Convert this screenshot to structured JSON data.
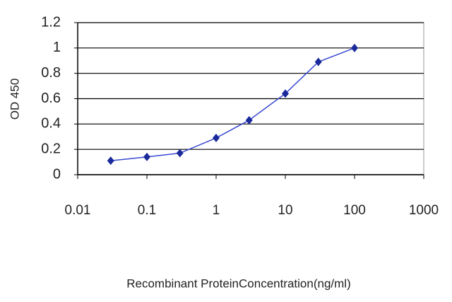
{
  "chart_data": {
    "type": "line",
    "x_label": "Recombinant ProteinConcentration(ng/ml)",
    "y_label": "OD 450",
    "x": [
      0.03,
      0.1,
      0.3,
      1,
      3,
      10,
      30,
      100
    ],
    "values": [
      0.11,
      0.14,
      0.17,
      0.29,
      0.43,
      0.64,
      0.89,
      1.0
    ],
    "color": "#1a2a9a",
    "line_color": "#3a4ad0",
    "xlog": true,
    "xlim": [
      0.01,
      1000
    ],
    "xticks": [
      0.01,
      0.1,
      1,
      10,
      100,
      1000
    ],
    "ylim": [
      0,
      1.2
    ],
    "yticks": [
      0,
      0.2,
      0.4,
      0.6,
      0.8,
      1,
      1.2
    ],
    "grid": true
  }
}
